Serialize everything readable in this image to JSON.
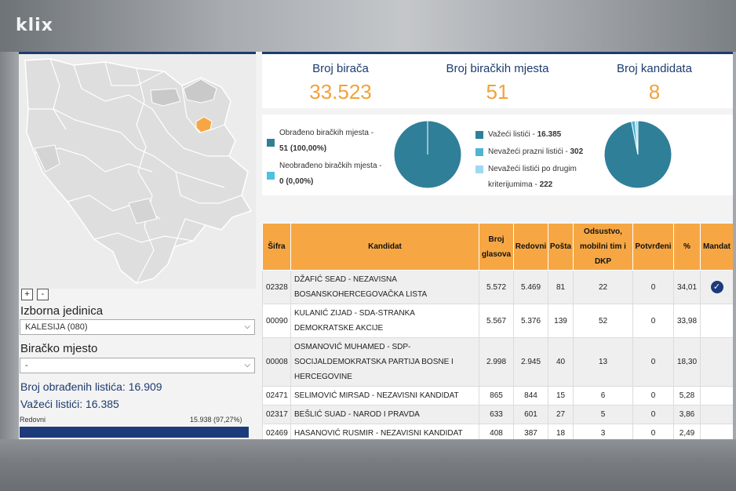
{
  "brand": {
    "logo": "klix"
  },
  "map": {
    "zoom_in": "+",
    "zoom_out": "-",
    "colors": {
      "region": "#dcdcdc",
      "borders": "#ffffff",
      "selected": "#f6a744",
      "entity": "#c9c9c9"
    }
  },
  "filters": {
    "constituency_label": "Izborna jedinica",
    "constituency_value": "KALESIJA (080)",
    "polling_label": "Biračko mjesto",
    "polling_value": "-"
  },
  "summary": {
    "processed_ballots": "Broj obrađenih listića: 16.909",
    "valid_ballots": "Važeći listići: 16.385",
    "progress_label": "Redovni",
    "progress_value": "15.938 (97,27%)",
    "progress_fraction": 0.9727
  },
  "stats": [
    {
      "title": "Broj birača",
      "value": "33.523"
    },
    {
      "title": "Broj biračkih mjesta",
      "value": "51"
    },
    {
      "title": "Broj kandidata",
      "value": "8"
    }
  ],
  "pies": {
    "stations": {
      "legend": [
        {
          "label": "Obrađeno biračkih mjesta -",
          "value": "51 (100,00%)",
          "color": "#2f7f99"
        },
        {
          "label": "Neobrađeno biračkih mjesta -",
          "value": "0 (0,00%)",
          "color": "#4fc1e0"
        }
      ],
      "values": [
        51,
        0
      ]
    },
    "ballots": {
      "legend": [
        {
          "label": "Važeći listići -",
          "value": "16.385",
          "color": "#2f7f99"
        },
        {
          "label": "Nevažeći prazni listići -",
          "value": "302",
          "color": "#4fb3d6"
        },
        {
          "label": "Nevažeći listići po drugim kriterijumima -",
          "value": "222",
          "color": "#9fd9ee"
        }
      ],
      "values": [
        16385,
        302,
        222
      ]
    }
  },
  "table": {
    "headers": [
      "Šifra",
      "Kandidat",
      "Broj glasova",
      "Redovni",
      "Pošta",
      "Odsustvo, mobilni tim i DKP",
      "Potvrđeni",
      "%",
      "Mandat"
    ],
    "rows": [
      {
        "code": "02328",
        "candidate": "DŽAFIĆ SEAD - NEZAVISNA BOSANSKOHERCEGOVAČKA LISTA",
        "votes": "5.572",
        "regular": "5.469",
        "post": "81",
        "absent": "22",
        "confirmed": "0",
        "pct": "34,01",
        "mandate": true
      },
      {
        "code": "00090",
        "candidate": "KULANIĆ ZIJAD - SDA-STRANKA DEMOKRATSKE AKCIJE",
        "votes": "5.567",
        "regular": "5.376",
        "post": "139",
        "absent": "52",
        "confirmed": "0",
        "pct": "33,98",
        "mandate": false
      },
      {
        "code": "00008",
        "candidate": "OSMANOVIĆ MUHAMED - SDP-SOCIJALDEMOKRATSKA PARTIJA BOSNE I HERCEGOVINE",
        "votes": "2.998",
        "regular": "2.945",
        "post": "40",
        "absent": "13",
        "confirmed": "0",
        "pct": "18,30",
        "mandate": false
      },
      {
        "code": "02471",
        "candidate": "SELIMOVIĆ MIRSAD - NEZAVISNI KANDIDAT",
        "votes": "865",
        "regular": "844",
        "post": "15",
        "absent": "6",
        "confirmed": "0",
        "pct": "5,28",
        "mandate": false
      },
      {
        "code": "02317",
        "candidate": "BEŠLIĆ SUAD - NAROD I PRAVDA",
        "votes": "633",
        "regular": "601",
        "post": "27",
        "absent": "5",
        "confirmed": "0",
        "pct": "3,86",
        "mandate": false
      },
      {
        "code": "02469",
        "candidate": "HASANOVIĆ RUSMIR - NEZAVISNI KANDIDAT",
        "votes": "408",
        "regular": "387",
        "post": "18",
        "absent": "3",
        "confirmed": "0",
        "pct": "2,49",
        "mandate": false
      }
    ]
  }
}
